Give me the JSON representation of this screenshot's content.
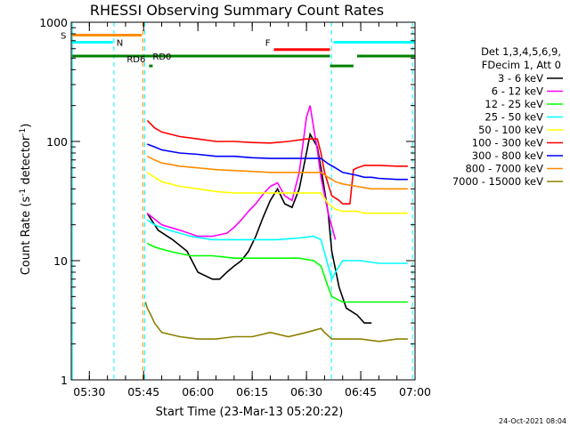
{
  "chart_data": {
    "type": "line",
    "title": "RHESSI Observing Summary Count Rates",
    "xlabel": "Start Time (23-Mar-13 05:20:22)",
    "ylabel_main": "Count Rate (s",
    "ylabel_sup1": "-1",
    "ylabel_mid": " detector",
    "ylabel_sup2": "-1",
    "ylabel_end": ")",
    "x_unit": "minutes since 05:20",
    "xlim": [
      5,
      100
    ],
    "ylim": [
      1,
      1000
    ],
    "y_scale": "log",
    "x_ticks": [
      {
        "v": 10,
        "label": "05:30"
      },
      {
        "v": 25,
        "label": "05:45"
      },
      {
        "v": 40,
        "label": "06:00"
      },
      {
        "v": 55,
        "label": "06:15"
      },
      {
        "v": 70,
        "label": "06:30"
      },
      {
        "v": 85,
        "label": "06:45"
      },
      {
        "v": 100,
        "label": "07:00"
      }
    ],
    "y_ticks": [
      {
        "v": 1,
        "label": "1"
      },
      {
        "v": 10,
        "label": "10"
      },
      {
        "v": 100,
        "label": "100"
      },
      {
        "v": 1000,
        "label": "1000"
      }
    ],
    "legend_header": [
      "Det 1,3,4,5,6,9,",
      "FDecim 1, Att 0"
    ],
    "legend_placement": "right",
    "footer_date": "24-Oct-2021 08:04",
    "series": [
      {
        "name": "3 - 6 keV",
        "color": "#000000",
        "x": [
          26,
          29,
          33,
          37,
          40,
          44,
          46,
          48,
          50,
          52,
          54,
          56,
          58,
          60,
          62,
          64,
          66,
          68,
          70,
          71,
          73,
          74,
          76,
          77,
          79,
          81,
          84,
          86,
          88
        ],
        "y": [
          25,
          18,
          15,
          12,
          8,
          7,
          7,
          8,
          9,
          10,
          12,
          16,
          23,
          32,
          40,
          30,
          28,
          40,
          80,
          115,
          90,
          60,
          25,
          12,
          6,
          4,
          3.5,
          3,
          3
        ]
      },
      {
        "name": "6 - 12 keV",
        "color": "#ff00ff",
        "x": [
          26,
          30,
          35,
          40,
          44,
          48,
          50,
          52,
          54,
          56,
          58,
          60,
          62,
          64,
          66,
          68,
          70,
          71,
          72,
          73,
          74,
          76,
          78
        ],
        "y": [
          25,
          20,
          18,
          16,
          16,
          17,
          19,
          22,
          26,
          30,
          36,
          42,
          45,
          35,
          32,
          55,
          160,
          200,
          130,
          85,
          50,
          25,
          15
        ]
      },
      {
        "name": "12 - 25 keV",
        "color": "#00ff00",
        "x": [
          26,
          28,
          32,
          38,
          44,
          50,
          56,
          62,
          68,
          72,
          74,
          76,
          77,
          80,
          85,
          90,
          95,
          98
        ],
        "y": [
          14,
          13,
          12,
          11,
          11,
          10.5,
          10.5,
          10.5,
          10.5,
          10,
          9,
          6,
          5,
          4.5,
          4.5,
          4.5,
          4.5,
          4.5
        ]
      },
      {
        "name": "25 - 50 keV",
        "color": "#00ffff",
        "x": [
          26,
          28,
          32,
          38,
          44,
          50,
          56,
          62,
          68,
          72,
          74,
          76,
          77,
          78,
          80,
          85,
          90,
          95,
          98
        ],
        "y": [
          22,
          20,
          18,
          16,
          15,
          15,
          15,
          15,
          15.5,
          16,
          15,
          9,
          7,
          8,
          10,
          10,
          9.5,
          9.5,
          9.5
        ]
      },
      {
        "name": "50 - 100 keV",
        "color": "#ffff00",
        "x": [
          26,
          28,
          30,
          35,
          40,
          45,
          50,
          55,
          60,
          65,
          70,
          74,
          76,
          78,
          80,
          82,
          84,
          86,
          88,
          90,
          95,
          98
        ],
        "y": [
          55,
          50,
          46,
          42,
          40,
          38,
          37,
          37,
          37,
          37,
          37,
          37,
          30,
          27,
          26,
          26,
          26,
          25,
          25,
          25,
          25,
          25
        ]
      },
      {
        "name": "100 - 300 keV",
        "color": "#ff0000",
        "x": [
          26,
          27,
          28,
          30,
          35,
          40,
          45,
          50,
          55,
          60,
          65,
          70,
          73,
          74,
          75,
          77,
          79,
          80,
          82,
          83,
          84,
          86,
          88,
          90,
          95,
          98
        ],
        "y": [
          150,
          140,
          130,
          120,
          110,
          105,
          100,
          100,
          98,
          97,
          100,
          105,
          105,
          80,
          55,
          35,
          32,
          30,
          30,
          58,
          60,
          63,
          63,
          63,
          62,
          62
        ]
      },
      {
        "name": "300 - 800 keV",
        "color": "#0000ff",
        "x": [
          26,
          28,
          30,
          35,
          40,
          45,
          50,
          55,
          60,
          65,
          70,
          74,
          76,
          78,
          80,
          84,
          86,
          88,
          90,
          95,
          98
        ],
        "y": [
          95,
          90,
          85,
          80,
          78,
          75,
          75,
          73,
          72,
          72,
          72,
          72,
          65,
          60,
          55,
          52,
          50,
          50,
          49,
          48,
          48
        ]
      },
      {
        "name": "800 - 7000 keV",
        "color": "#ff8c00",
        "x": [
          26,
          28,
          30,
          35,
          40,
          45,
          50,
          55,
          60,
          65,
          70,
          74,
          76,
          78,
          80,
          84,
          86,
          88,
          90,
          95,
          98
        ],
        "y": [
          75,
          70,
          66,
          62,
          60,
          58,
          57,
          56,
          55,
          55,
          55,
          55,
          50,
          46,
          44,
          42,
          41,
          40,
          40,
          40,
          40
        ]
      },
      {
        "name": "7000 - 15000 keV",
        "color": "#8b8000",
        "x": [
          25.5,
          26,
          27,
          28,
          30,
          35,
          40,
          45,
          50,
          55,
          60,
          65,
          70,
          74,
          75,
          77,
          80,
          85,
          90,
          95,
          98
        ],
        "y": [
          4.5,
          4,
          3.5,
          3,
          2.5,
          2.3,
          2.2,
          2.2,
          2.3,
          2.3,
          2.5,
          2.3,
          2.5,
          2.7,
          2.5,
          2.2,
          2.2,
          2.2,
          2.1,
          2.2,
          2.2
        ]
      }
    ],
    "annotations": [
      {
        "label": "S",
        "color": "#ff8c00",
        "x1": 5.3,
        "x2": 24.5,
        "y": 780
      },
      {
        "label": "N",
        "color": "#00ffff",
        "x1": 5.3,
        "x2": 16.5,
        "y": 680
      },
      {
        "label": "RD0",
        "color": "#008000",
        "x1": 5.3,
        "x2": 76.5,
        "y": 520
      },
      {
        "label": "RD6",
        "color": "#008000",
        "x1": 26.5,
        "x2": 27.5,
        "y": 430
      },
      {
        "label": "F",
        "color": "#ff0000",
        "x1": 61,
        "x2": 76.5,
        "y": 590
      }
    ],
    "extra_bars": [
      {
        "color": "#008000",
        "x1": 76.5,
        "x2": 83,
        "y": 430
      },
      {
        "color": "#008000",
        "x1": 84,
        "x2": 100,
        "y": 520
      },
      {
        "color": "#00ffff",
        "x1": 77.5,
        "x2": 100,
        "y": 680
      }
    ],
    "vlines": [
      {
        "x": 5.3,
        "color": "#00ffff",
        "dash": false
      },
      {
        "x": 16.8,
        "color": "#00ffff",
        "dash": true
      },
      {
        "x": 24.8,
        "color": "#ff8c00",
        "dash": true
      },
      {
        "x": 25.3,
        "color": "#00ffff",
        "dash": true
      },
      {
        "x": 76.9,
        "color": "#00ffff",
        "dash": true
      },
      {
        "x": 99.3,
        "color": "#00ffff",
        "dash": true
      }
    ]
  }
}
